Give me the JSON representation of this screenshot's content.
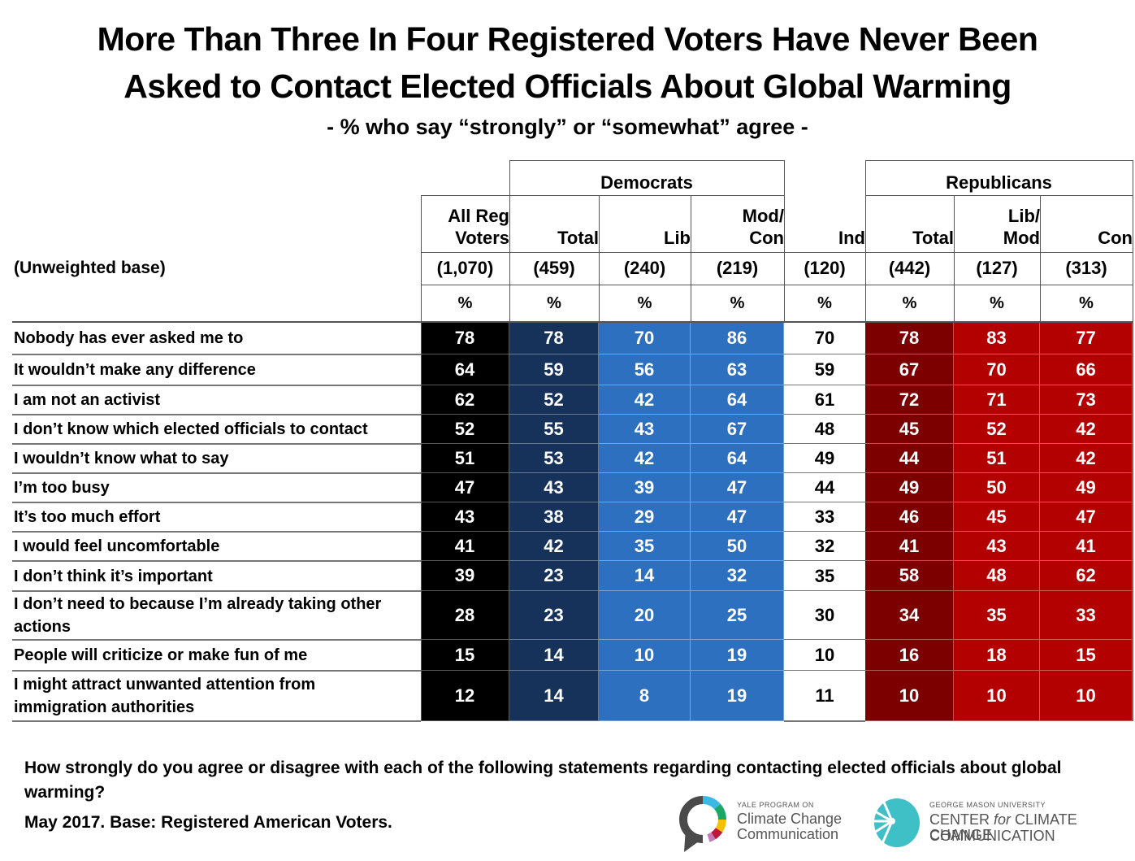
{
  "title_line1": "More Than Three In Four Registered Voters Have Never Been",
  "title_line2": "Asked to Contact Elected Officials About Global Warming",
  "subtitle": "- % who say “strongly” or “somewhat” agree -",
  "groups": {
    "democrats": "Democrats",
    "republicans": "Republicans"
  },
  "base_label": "(Unweighted base)",
  "columns": [
    {
      "key": "all",
      "label": "All Reg Voters",
      "line1": "All Reg",
      "line2": "Voters",
      "base": "(1,070)",
      "unit": "%",
      "color": "#000000"
    },
    {
      "key": "dem_total",
      "label": "Total",
      "line1": "",
      "line2": "Total",
      "base": "(459)",
      "unit": "%",
      "color": "#17325a"
    },
    {
      "key": "dem_lib",
      "label": "Lib",
      "line1": "",
      "line2": "Lib",
      "base": "(240)",
      "unit": "%",
      "color": "#2e70c0"
    },
    {
      "key": "dem_modcon",
      "label": "Mod/Con",
      "line1": "Mod/",
      "line2": "Con",
      "base": "(219)",
      "unit": "%",
      "color": "#2e70c0"
    },
    {
      "key": "ind",
      "label": "Ind",
      "line1": "",
      "line2": "Ind",
      "base": "(120)",
      "unit": "%",
      "color": "#ffffff"
    },
    {
      "key": "rep_total",
      "label": "Total",
      "line1": "",
      "line2": "Total",
      "base": "(442)",
      "unit": "%",
      "color": "#7d0000"
    },
    {
      "key": "rep_libmod",
      "label": "Lib/Mod",
      "line1": "Lib/",
      "line2": "Mod",
      "base": "(127)",
      "unit": "%",
      "color": "#b30000"
    },
    {
      "key": "rep_con",
      "label": "Con",
      "line1": "",
      "line2": "Con",
      "base": "(313)",
      "unit": "%",
      "color": "#b30000"
    }
  ],
  "rows": [
    {
      "label": "Nobody has ever asked me to",
      "values": [
        78,
        78,
        70,
        86,
        70,
        78,
        83,
        77
      ]
    },
    {
      "label": "It wouldn’t make any difference",
      "values": [
        64,
        59,
        56,
        63,
        59,
        67,
        70,
        66
      ]
    },
    {
      "label": "I am not an activist",
      "values": [
        62,
        52,
        42,
        64,
        61,
        72,
        71,
        73
      ]
    },
    {
      "label": "I don’t know which elected officials to contact",
      "values": [
        52,
        55,
        43,
        67,
        48,
        45,
        52,
        42
      ]
    },
    {
      "label": "I wouldn’t know what to say",
      "values": [
        51,
        53,
        42,
        64,
        49,
        44,
        51,
        42
      ]
    },
    {
      "label": "I’m too busy",
      "values": [
        47,
        43,
        39,
        47,
        44,
        49,
        50,
        49
      ]
    },
    {
      "label": "It’s too much effort",
      "values": [
        43,
        38,
        29,
        47,
        33,
        46,
        45,
        47
      ]
    },
    {
      "label": "I would feel uncomfortable",
      "values": [
        41,
        42,
        35,
        50,
        32,
        41,
        43,
        41
      ]
    },
    {
      "label": "I don’t think it’s important",
      "values": [
        39,
        23,
        14,
        32,
        35,
        58,
        48,
        62
      ]
    },
    {
      "label": "I don’t need to because I’m already taking other actions",
      "values": [
        28,
        23,
        20,
        25,
        30,
        34,
        35,
        33
      ]
    },
    {
      "label": "People will criticize or make fun of me",
      "values": [
        15,
        14,
        10,
        19,
        10,
        16,
        18,
        15
      ]
    },
    {
      "label": "I might attract unwanted attention from immigration authorities",
      "values": [
        12,
        14,
        8,
        19,
        11,
        10,
        10,
        10
      ]
    }
  ],
  "footer": {
    "question": "How strongly do you agree or disagree with each of the following statements regarding contacting elected officials about global warming?",
    "fieldnote": "May 2017. Base: Registered American Voters."
  },
  "logos": {
    "yale_small": "YALE PROGRAM ON",
    "yale_line1": "Climate Change",
    "yale_line2": "Communication",
    "gmu_small": "GEORGE MASON UNIVERSITY",
    "gmu_line1_a": "CENTER ",
    "gmu_line1_b": "for",
    "gmu_line1_c": " CLIMATE CHANGE",
    "gmu_line2": "COMMUNICATION"
  },
  "chart_data": {
    "type": "table",
    "title": "More Than Three In Four Registered Voters Have Never Been Asked to Contact Elected Officials About Global Warming",
    "subtitle": "- % who say “strongly” or “somewhat” agree -",
    "column_groups": [
      {
        "name": "",
        "columns": [
          "All Reg Voters"
        ]
      },
      {
        "name": "Democrats",
        "columns": [
          "Total",
          "Lib",
          "Mod/Con"
        ]
      },
      {
        "name": "",
        "columns": [
          "Ind"
        ]
      },
      {
        "name": "Republicans",
        "columns": [
          "Total",
          "Lib/Mod",
          "Con"
        ]
      }
    ],
    "unweighted_base": [
      "(1,070)",
      "(459)",
      "(240)",
      "(219)",
      "(120)",
      "(442)",
      "(127)",
      "(313)"
    ],
    "unit": "%",
    "categories": [
      "Nobody has ever asked me to",
      "It wouldn’t make any difference",
      "I am not an activist",
      "I don’t know which elected officials to contact",
      "I wouldn’t know what to say",
      "I’m too busy",
      "It’s too much effort",
      "I would feel uncomfortable",
      "I don’t think it’s important",
      "I don’t need to because I’m already taking other actions",
      "People will criticize or make fun of me",
      "I might attract unwanted attention from immigration authorities"
    ],
    "series": [
      {
        "name": "All Reg Voters",
        "values": [
          78,
          64,
          62,
          52,
          51,
          47,
          43,
          41,
          39,
          28,
          15,
          12
        ]
      },
      {
        "name": "Democrats Total",
        "values": [
          78,
          59,
          52,
          55,
          53,
          43,
          38,
          42,
          23,
          23,
          14,
          14
        ]
      },
      {
        "name": "Democrats Lib",
        "values": [
          70,
          56,
          42,
          43,
          42,
          39,
          29,
          35,
          14,
          20,
          10,
          8
        ]
      },
      {
        "name": "Democrats Mod/Con",
        "values": [
          86,
          63,
          64,
          67,
          64,
          47,
          47,
          50,
          32,
          25,
          19,
          19
        ]
      },
      {
        "name": "Ind",
        "values": [
          70,
          59,
          61,
          48,
          49,
          44,
          33,
          32,
          35,
          30,
          10,
          11
        ]
      },
      {
        "name": "Republicans Total",
        "values": [
          78,
          67,
          72,
          45,
          44,
          49,
          46,
          41,
          58,
          34,
          16,
          10
        ]
      },
      {
        "name": "Republicans Lib/Mod",
        "values": [
          83,
          70,
          71,
          52,
          51,
          50,
          45,
          43,
          48,
          35,
          18,
          10
        ]
      },
      {
        "name": "Republicans Con",
        "values": [
          77,
          66,
          73,
          42,
          42,
          49,
          47,
          41,
          62,
          33,
          15,
          10
        ]
      }
    ],
    "notes": [
      "How strongly do you agree or disagree with each of the following statements regarding contacting elected officials about global warming?",
      "May 2017. Base: Registered American Voters."
    ]
  }
}
